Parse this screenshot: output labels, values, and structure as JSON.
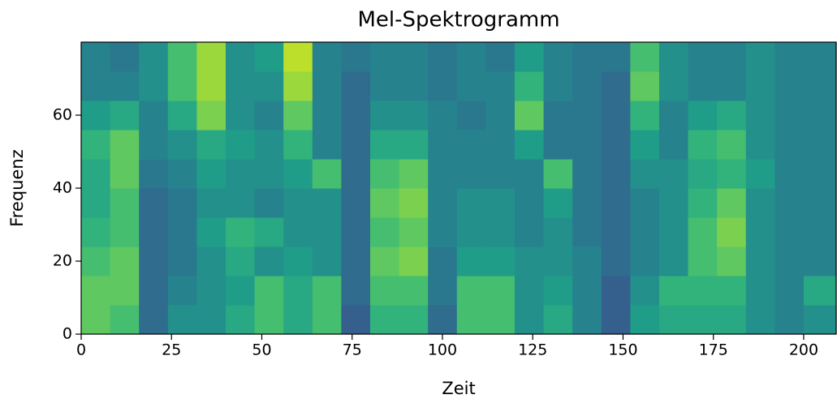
{
  "chart_data": {
    "type": "heatmap",
    "title": "Mel-Spektrogramm",
    "x_label": "Zeit",
    "y_label": "Frequenz",
    "colormap": "viridis",
    "zlim": [
      0,
      1
    ],
    "xlim": [
      0,
      209
    ],
    "ylim": [
      0,
      80
    ],
    "xticks": [
      0,
      25,
      50,
      75,
      100,
      125,
      150,
      175,
      200
    ],
    "yticks": [
      0,
      20,
      40,
      60
    ],
    "xbins": [
      0,
      8,
      16,
      24,
      32,
      40,
      48,
      56,
      64,
      72,
      80,
      88,
      96,
      104,
      112,
      120,
      128,
      136,
      144,
      152,
      160,
      168,
      176,
      184,
      192,
      200,
      209
    ],
    "ybins": [
      0,
      8,
      16,
      24,
      32,
      40,
      48,
      56,
      64,
      72,
      80
    ],
    "values": [
      [
        0.75,
        0.7,
        0.35,
        0.5,
        0.5,
        0.6,
        0.7,
        0.6,
        0.7,
        0.3,
        0.65,
        0.65,
        0.35,
        0.7,
        0.7,
        0.5,
        0.6,
        0.45,
        0.3,
        0.55,
        0.6,
        0.6,
        0.6,
        0.5,
        0.45,
        0.5
      ],
      [
        0.75,
        0.75,
        0.35,
        0.45,
        0.5,
        0.55,
        0.7,
        0.6,
        0.7,
        0.35,
        0.7,
        0.7,
        0.4,
        0.7,
        0.7,
        0.5,
        0.55,
        0.45,
        0.3,
        0.5,
        0.65,
        0.65,
        0.65,
        0.5,
        0.45,
        0.6
      ],
      [
        0.7,
        0.75,
        0.35,
        0.4,
        0.5,
        0.6,
        0.5,
        0.55,
        0.5,
        0.35,
        0.75,
        0.8,
        0.4,
        0.55,
        0.55,
        0.5,
        0.5,
        0.45,
        0.35,
        0.45,
        0.5,
        0.7,
        0.75,
        0.5,
        0.45,
        0.45
      ],
      [
        0.65,
        0.7,
        0.35,
        0.4,
        0.55,
        0.65,
        0.6,
        0.5,
        0.5,
        0.35,
        0.7,
        0.75,
        0.45,
        0.5,
        0.5,
        0.45,
        0.5,
        0.4,
        0.35,
        0.45,
        0.5,
        0.7,
        0.8,
        0.5,
        0.45,
        0.45
      ],
      [
        0.6,
        0.7,
        0.35,
        0.4,
        0.5,
        0.5,
        0.45,
        0.5,
        0.5,
        0.35,
        0.75,
        0.8,
        0.45,
        0.5,
        0.5,
        0.45,
        0.55,
        0.4,
        0.35,
        0.45,
        0.5,
        0.65,
        0.75,
        0.5,
        0.45,
        0.45
      ],
      [
        0.6,
        0.75,
        0.4,
        0.45,
        0.55,
        0.5,
        0.5,
        0.55,
        0.7,
        0.35,
        0.7,
        0.75,
        0.45,
        0.45,
        0.45,
        0.45,
        0.7,
        0.4,
        0.35,
        0.5,
        0.5,
        0.6,
        0.65,
        0.55,
        0.45,
        0.45
      ],
      [
        0.65,
        0.75,
        0.45,
        0.5,
        0.6,
        0.55,
        0.5,
        0.65,
        0.45,
        0.35,
        0.6,
        0.6,
        0.45,
        0.45,
        0.45,
        0.55,
        0.4,
        0.4,
        0.35,
        0.55,
        0.45,
        0.65,
        0.7,
        0.5,
        0.45,
        0.45
      ],
      [
        0.55,
        0.6,
        0.45,
        0.6,
        0.8,
        0.5,
        0.45,
        0.75,
        0.45,
        0.35,
        0.5,
        0.5,
        0.45,
        0.4,
        0.45,
        0.75,
        0.4,
        0.4,
        0.35,
        0.65,
        0.45,
        0.55,
        0.6,
        0.5,
        0.45,
        0.45
      ],
      [
        0.45,
        0.45,
        0.5,
        0.7,
        0.85,
        0.5,
        0.5,
        0.85,
        0.45,
        0.35,
        0.45,
        0.45,
        0.4,
        0.45,
        0.45,
        0.65,
        0.45,
        0.4,
        0.35,
        0.75,
        0.5,
        0.45,
        0.45,
        0.5,
        0.45,
        0.45
      ],
      [
        0.45,
        0.4,
        0.5,
        0.7,
        0.85,
        0.5,
        0.55,
        0.9,
        0.45,
        0.4,
        0.45,
        0.45,
        0.4,
        0.45,
        0.4,
        0.55,
        0.45,
        0.4,
        0.4,
        0.7,
        0.5,
        0.45,
        0.45,
        0.5,
        0.45,
        0.45
      ]
    ]
  }
}
